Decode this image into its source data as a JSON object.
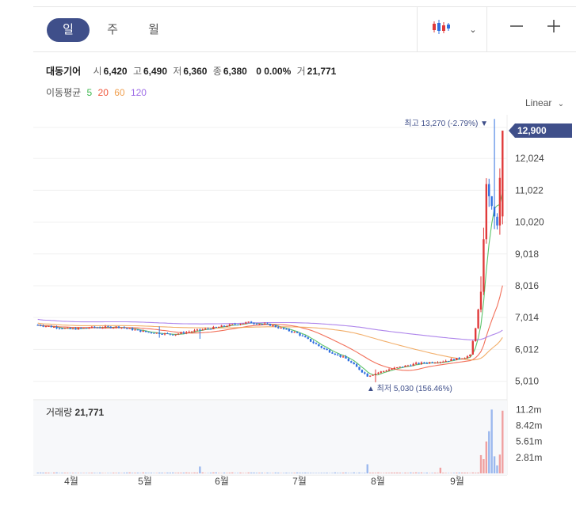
{
  "tabs": [
    {
      "label": "일",
      "active": true
    },
    {
      "label": "주",
      "active": false
    },
    {
      "label": "월",
      "active": false
    }
  ],
  "toolbar": {
    "chart_type_icon": "candlestick-icon",
    "dropdown_icon": "chevron-down-icon",
    "zoom_out": "—",
    "zoom_in": "+"
  },
  "quote": {
    "name": "대동기어",
    "open_label": "시",
    "open": "6,420",
    "high_label": "고",
    "high": "6,490",
    "low_label": "저",
    "low": "6,360",
    "close_label": "종",
    "close": "6,380",
    "change": "0 0.00%",
    "volume_label": "거",
    "volume": "21,771"
  },
  "ma": {
    "label": "이동평균",
    "items": [
      {
        "label": "5",
        "color": "#3fb950"
      },
      {
        "label": "20",
        "color": "#f0563c"
      },
      {
        "label": "60",
        "color": "#f0a050"
      },
      {
        "label": "120",
        "color": "#a070e8"
      }
    ]
  },
  "scale_label": "Linear",
  "annotations": {
    "high": "최고 13,270 (-2.79%) ▼",
    "low": "▲ 최저 5,030 (156.46%)"
  },
  "current_price": "12,900",
  "colors": {
    "up": "#e03a3a",
    "down": "#2f6fe0",
    "badge": "#3f4f8a"
  },
  "volume_title": {
    "label": "거래량",
    "value": "21,771"
  },
  "chart_data": {
    "type": "candlestick",
    "y_ticks": [
      "12,024",
      "11,022",
      "10,020",
      "9,018",
      "8,016",
      "7,014",
      "6,012",
      "5,010"
    ],
    "y_tick_values": [
      12024,
      11022,
      10020,
      9018,
      8016,
      7014,
      6012,
      5010
    ],
    "ylim": [
      4800,
      13400
    ],
    "x_labels": [
      "4월",
      "5월",
      "6월",
      "7월",
      "8월",
      "9월"
    ],
    "volume_ticks": [
      "11.2m",
      "8.42m",
      "5.61m",
      "2.81m"
    ],
    "volume_tick_values": [
      11.2,
      8.42,
      5.61,
      2.81
    ],
    "high": 13270,
    "low": 5030,
    "last": 12900
  }
}
